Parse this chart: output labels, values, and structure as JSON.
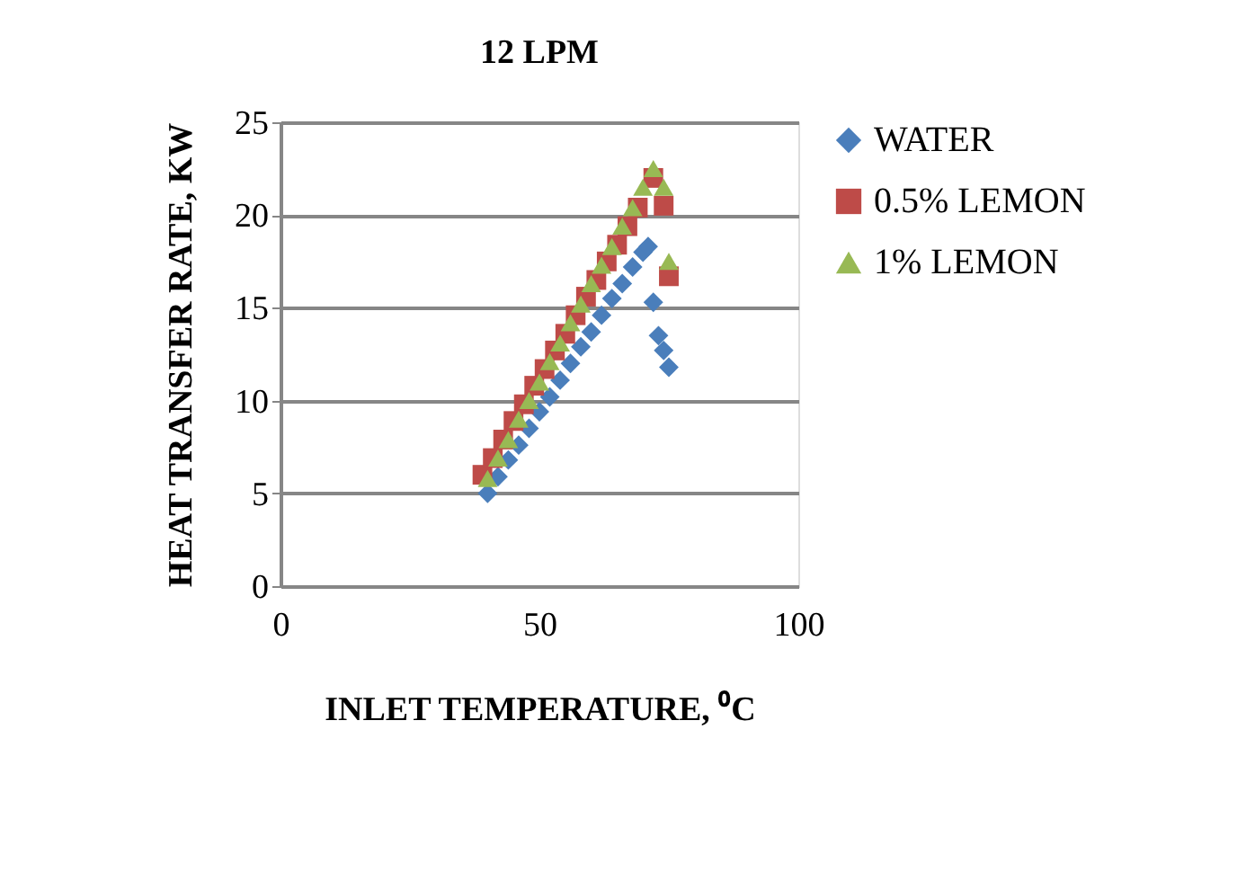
{
  "chart_data": {
    "type": "scatter",
    "title": "12 LPM",
    "xlabel": "INLET TEMPERATURE, ⁰C",
    "ylabel": "HEAT TRANSFER RATE, KW",
    "xlim": [
      0,
      100
    ],
    "xticks": [
      0,
      50,
      100
    ],
    "ylim": [
      0,
      25
    ],
    "yticks": [
      0,
      5,
      10,
      15,
      20,
      25
    ],
    "grid": "y",
    "legend": "right",
    "series": [
      {
        "name": "WATER",
        "color": "#4a7ebb",
        "marker": "diamond",
        "x": [
          40,
          42,
          44,
          46,
          48,
          50,
          52,
          54,
          56,
          58,
          60,
          62,
          64,
          66,
          68,
          70,
          71,
          72,
          73,
          74,
          75
        ],
        "values": [
          5.0,
          5.9,
          6.8,
          7.6,
          8.5,
          9.4,
          10.2,
          11.1,
          12.0,
          12.9,
          13.7,
          14.6,
          15.5,
          16.3,
          17.2,
          18.0,
          18.3,
          15.3,
          13.5,
          12.7,
          11.8
        ]
      },
      {
        "name": "0.5% LEMON",
        "color": "#be4b48",
        "marker": "square",
        "x": [
          39,
          41,
          43,
          45,
          47,
          49,
          51,
          53,
          55,
          57,
          59,
          61,
          63,
          65,
          67,
          69,
          71,
          72,
          74,
          75
        ],
        "values": [
          6.0,
          6.9,
          7.9,
          8.9,
          9.8,
          10.8,
          11.7,
          12.7,
          13.6,
          14.6,
          15.6,
          16.5,
          17.5,
          18.4,
          19.4,
          20.4,
          null,
          22.0,
          20.5,
          16.7
        ]
      },
      {
        "name": "1% LEMON",
        "color": "#98b954",
        "marker": "triangle",
        "x": [
          40,
          42,
          44,
          46,
          48,
          50,
          52,
          54,
          56,
          58,
          60,
          62,
          64,
          66,
          68,
          70,
          72,
          74,
          75
        ],
        "values": [
          5.8,
          6.9,
          7.9,
          9.0,
          10.0,
          11.0,
          12.1,
          13.1,
          14.2,
          15.2,
          16.3,
          17.3,
          18.3,
          19.4,
          20.4,
          21.5,
          22.5,
          21.5,
          17.5
        ]
      }
    ]
  }
}
